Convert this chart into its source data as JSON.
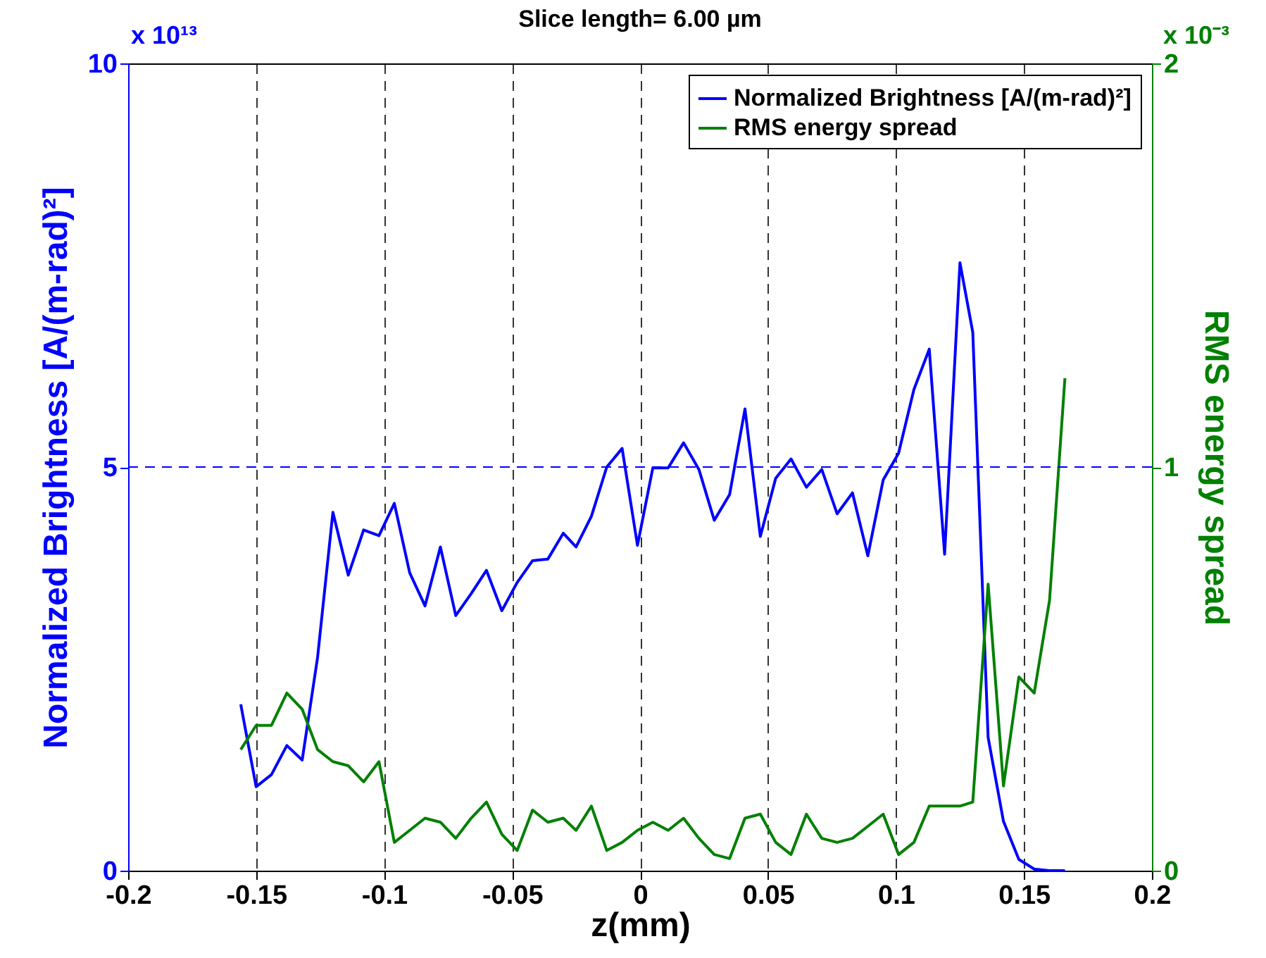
{
  "chart_data": {
    "type": "line",
    "title": "Slice length=  6.00 µm",
    "xlabel": "z(mm)",
    "ylabel": "Normalized Brightness [A/(m-rad)²]",
    "y2label": "RMS energy spread",
    "annotations": [
      "x 10¹³",
      "x 10⁻³"
    ],
    "x": [
      -0.156,
      -0.15,
      -0.144,
      -0.138,
      -0.132,
      -0.126,
      -0.12,
      -0.114,
      -0.108,
      -0.102,
      -0.096,
      -0.09,
      -0.084,
      -0.078,
      -0.072,
      -0.066,
      -0.06,
      -0.054,
      -0.048,
      -0.042,
      -0.036,
      -0.03,
      -0.025,
      -0.019,
      -0.013,
      -0.007,
      -0.001,
      0.005,
      0.011,
      0.017,
      0.023,
      0.029,
      0.035,
      0.041,
      0.047,
      0.053,
      0.059,
      0.065,
      0.071,
      0.077,
      0.083,
      0.089,
      0.095,
      0.101,
      0.107,
      0.113,
      0.119,
      0.125,
      0.13,
      0.136,
      0.142,
      0.148,
      0.154,
      0.16,
      0.166
    ],
    "series": [
      {
        "name": "Normalized Brightness [A/(m-rad)²]",
        "color": "#0000ff",
        "values": [
          2.06,
          1.04,
          1.19,
          1.55,
          1.37,
          2.64,
          4.44,
          3.66,
          4.22,
          4.15,
          4.55,
          3.69,
          3.28,
          4.01,
          3.16,
          3.43,
          3.72,
          3.22,
          3.57,
          3.84,
          3.86,
          4.18,
          4.01,
          4.39,
          5.0,
          5.23,
          4.03,
          4.99,
          4.99,
          5.3,
          4.97,
          4.34,
          4.66,
          5.72,
          4.14,
          4.86,
          5.1,
          4.75,
          4.97,
          4.42,
          4.68,
          3.9,
          4.84,
          5.17,
          5.96,
          6.46,
          3.92,
          7.53,
          6.67,
          1.65,
          0.61,
          0.14,
          0.02,
          0.0,
          0.0
        ]
      },
      {
        "name": "RMS energy spread",
        "color": "#008000",
        "axis": "y2",
        "values": [
          0.3,
          0.36,
          0.36,
          0.44,
          0.4,
          0.3,
          0.27,
          0.26,
          0.22,
          0.27,
          0.07,
          0.1,
          0.13,
          0.12,
          0.08,
          0.13,
          0.17,
          0.09,
          0.05,
          0.15,
          0.12,
          0.13,
          0.1,
          0.16,
          0.05,
          0.07,
          0.1,
          0.12,
          0.1,
          0.13,
          0.08,
          0.04,
          0.03,
          0.13,
          0.14,
          0.07,
          0.04,
          0.14,
          0.08,
          0.07,
          0.08,
          0.11,
          0.14,
          0.04,
          0.07,
          0.16,
          0.16,
          0.16,
          0.17,
          0.71,
          0.21,
          0.48,
          0.44,
          0.67,
          1.22
        ]
      }
    ],
    "xlim": [
      -0.2,
      0.2
    ],
    "xticks": [
      -0.2,
      -0.15,
      -0.1,
      -0.05,
      0,
      0.05,
      0.1,
      0.15,
      0.2
    ],
    "ylim": [
      0,
      10
    ],
    "yticks": [
      0,
      5,
      10
    ],
    "y2lim": [
      0,
      2
    ],
    "y2ticks": [
      0,
      1,
      2
    ],
    "ref_lines": [
      {
        "axis": "y",
        "value": 5,
        "color": "#0000ff",
        "line_style": "dashed"
      }
    ],
    "grid": "x",
    "legend": "top right"
  }
}
